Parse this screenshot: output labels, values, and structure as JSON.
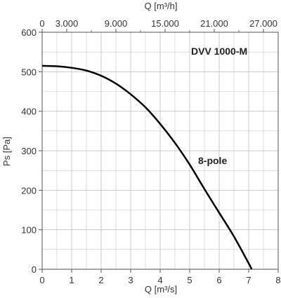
{
  "chart_data": {
    "type": "line",
    "title": "",
    "xlabel": "Q [m³/s]",
    "ylabel": "Ps [Pa]",
    "xlabel_top": "Q [m³/h]",
    "xlim": [
      0,
      8
    ],
    "ylim": [
      0,
      600
    ],
    "x_ticks": [
      0,
      1,
      2,
      3,
      4,
      5,
      6,
      7,
      8
    ],
    "y_ticks": [
      0,
      100,
      200,
      300,
      400,
      500,
      600
    ],
    "top_ticks": [
      {
        "value": 0,
        "label": "0"
      },
      {
        "value": 3000,
        "label": "3.000"
      },
      {
        "value": 9000,
        "label": "9.000"
      },
      {
        "value": 15000,
        "label": "15.000"
      },
      {
        "value": 21000,
        "label": "21.000"
      },
      {
        "value": 27000,
        "label": "27.000"
      }
    ],
    "grid": true,
    "annotations": {
      "model": "DVV 1000-M",
      "curve_label": "8-pole"
    },
    "series": [
      {
        "name": "",
        "x": [
          0,
          0.5,
          1.0,
          1.5,
          2.0,
          2.5,
          3.0,
          3.5,
          4.0,
          4.5,
          5.0,
          5.5,
          6.0,
          6.5,
          7.0,
          7.1
        ],
        "y": [
          515,
          514,
          510,
          503,
          490,
          470,
          443,
          410,
          368,
          320,
          265,
          203,
          143,
          83,
          15,
          0
        ]
      }
    ],
    "colors": {
      "curve": "#000000",
      "grid": "#c8c8c8",
      "frame": "#555555"
    }
  }
}
